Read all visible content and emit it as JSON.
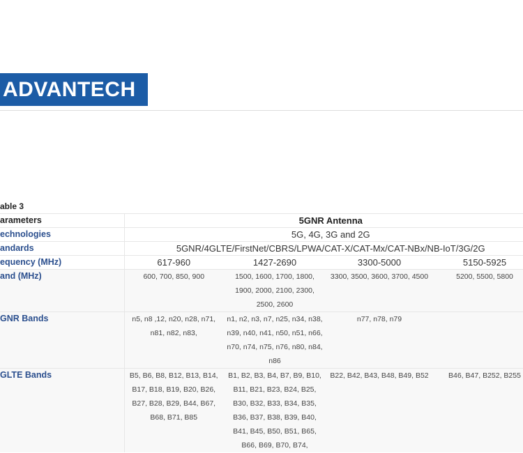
{
  "header": {
    "logo": "ADVANTECH"
  },
  "table": {
    "caption": "able 3",
    "head": [
      "arameters",
      "5GNR Antenna"
    ],
    "spans": [
      [
        "echnologies",
        "5G, 4G, 3G and 2G"
      ],
      [
        "andards",
        "5GNR/4GLTE/FirstNet/CBRS/LPWA/CAT-X/CAT-Mx/CAT-NBx/NB-IoT/3G/2G"
      ]
    ],
    "rows": [
      [
        "equency (MHz)",
        "617-960",
        "1427-2690",
        "3300-5000",
        "5150-5925"
      ],
      [
        "and (MHz)",
        "600, 700, 850, 900",
        "1500, 1600, 1700, 1800, 1900, 2000, 2100, 2300, 2500, 2600",
        "3300, 3500, 3600, 3700, 4500",
        "5200, 5500, 5800"
      ],
      [
        "GNR Bands",
        "n5, n8 ,12, n20, n28, n71, n81, n82, n83,",
        "n1, n2, n3, n7, n25, n34, n38, n39, n40, n41, n50, n51, n66, n70, n74, n75, n76, n80, n84, n86",
        "n77, n78, n79",
        ""
      ],
      [
        "GLTE Bands",
        "B5, B6, B8, B12, B13, B14, B17, B18, B19, B20, B26, B27, B28, B29, B44, B67, B68, B71, B85",
        "B1, B2, B3, B4, B7, B9, B10, B11, B21, B23, B24, B25, B30, B32, B33, B34, B35, B36, B37, B38, B39, B40, B41, B45, B50, B51, B65, B66, B69, B70, B74,",
        "B22, B42, B43, B48, B49, B52",
        "B46, B47, B252, B255"
      ]
    ]
  }
}
